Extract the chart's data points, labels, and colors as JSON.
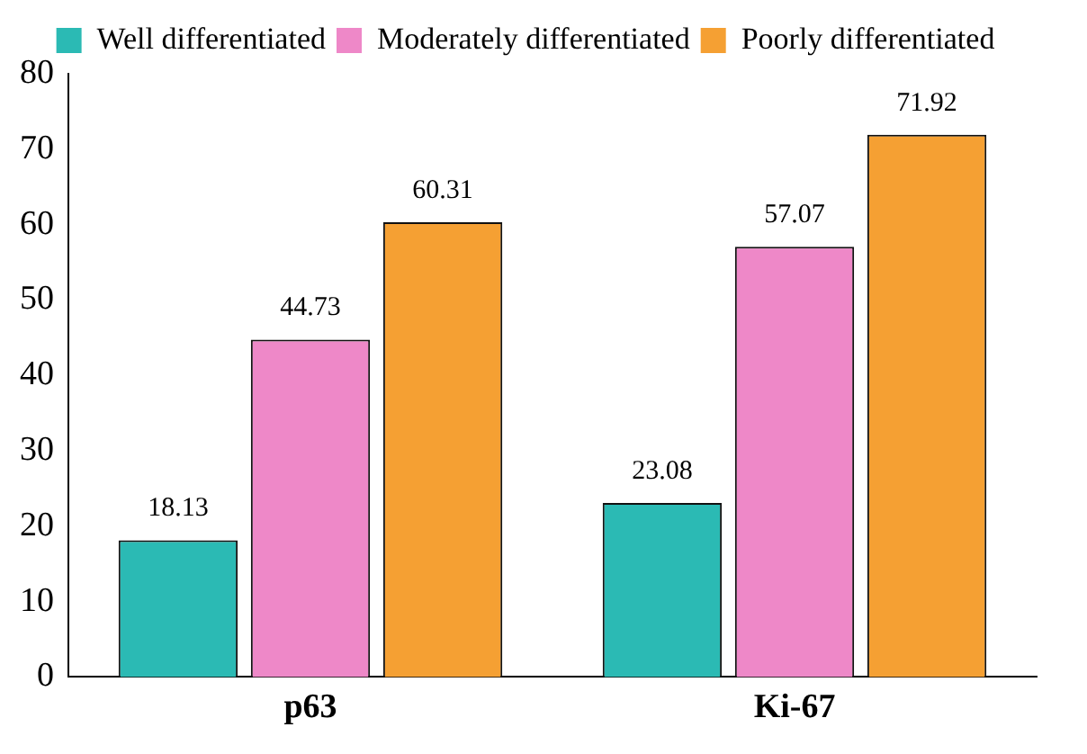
{
  "chart_data": {
    "type": "bar",
    "categories": [
      "p63",
      "Ki-67"
    ],
    "series": [
      {
        "name": "Well differentiated",
        "color": "#2bbab4",
        "values": [
          18.13,
          23.08
        ]
      },
      {
        "name": "Moderately differentiated",
        "color": "#ee88c8",
        "values": [
          44.73,
          57.07
        ]
      },
      {
        "name": "Poorly differentiated",
        "color": "#f5a033",
        "values": [
          60.31,
          71.92
        ]
      }
    ],
    "ylim": [
      0,
      80
    ],
    "yticks": [
      0,
      10,
      20,
      30,
      40,
      50,
      60,
      70,
      80
    ],
    "grid": false,
    "legend": "top",
    "data_labels": true
  }
}
